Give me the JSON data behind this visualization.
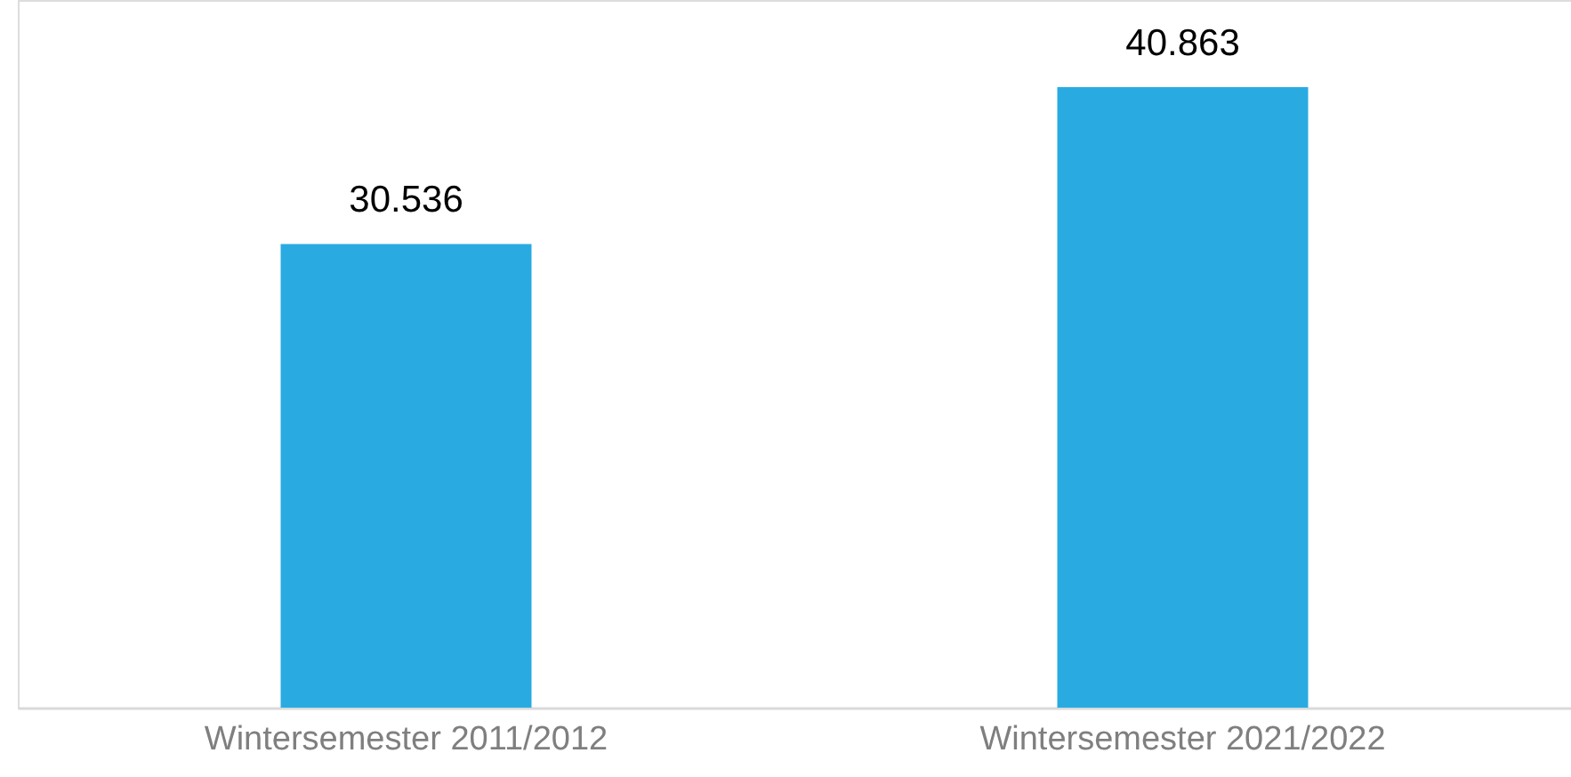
{
  "chart_data": {
    "type": "bar",
    "categories": [
      "Wintersemester 2011/2012",
      "Wintersemester 2021/2022"
    ],
    "values": [
      30536,
      40863
    ],
    "color": "#29abe2",
    "value_labels": [
      "30.536",
      "40.863"
    ],
    "ylim": [
      0,
      46600
    ],
    "grid": false,
    "tick_labels": "x"
  }
}
